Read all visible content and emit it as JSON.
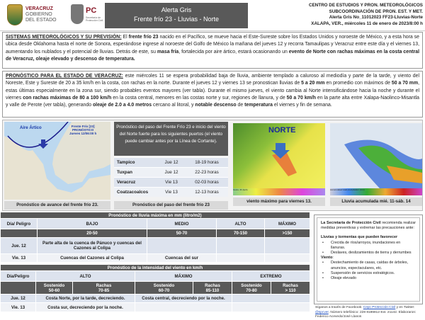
{
  "header": {
    "logo_veracruz": [
      "VERACRUZ",
      "GOBIERNO",
      "DEL ESTADO"
    ],
    "logo_pc": "PC",
    "logo_pc_sub": "Secretaría de Protección Civil",
    "title": "Alerta Gris",
    "subtitle": "Frente frío 23 - Lluvias - Norte",
    "right_lines": [
      "CENTRO DE ESTUDIOS Y PRON. METEOROLÓGICOS",
      "SUBCOORDINACIÓN DE PRON.  EST. Y MET.",
      "Alerta Gris No_11012023 FF23-Lluvias-Norte",
      "XALAPA, VER., miércoles 11 de enero  de 2023/8:00 h"
    ]
  },
  "section1": {
    "heading": "SISTEMAS METEOROLÓGICOS Y SU PREVISIÓN:",
    "t1": " El ",
    "b1": "frente frío 23",
    "t2": " nacido en el Pacífico, se mueve hacia el Este-Sureste sobre los Estados Unidos y noroeste de México, y a esta hora se ubica desde Oklahoma hasta el norte de Sonora, esperándose ingrese al noroeste del Golfo de México la mañana del jueves 12 y recorra Tamaulipas y Veracruz entre este día y el viernes 13, aumentando los nublados y el potencial de lluvias. Detrás de este, su ",
    "b2": "masa fría",
    "t3": ", fortalecida por aire ártico, estará ocasionando un ",
    "b3": "evento de Norte con rachas máximas en la costa central de Veracruz, oleaje elevado y descenso de temperatura."
  },
  "section2": {
    "heading": "PRONÓSTICO PARA EL ESTADO DE VERACRUZ:",
    "t1": " este miércoles 11 se espera probabilidad baja de lluvia, ambiente templado a caluroso al mediodía y parte de la tarde, y viento del Noreste, Este y Sureste de 20 a 35 km/h en la costa, con rachas en la norte. Durante el jueves 12 y viernes 13 se pronostican lluvias de ",
    "b1": "5 a 20 mm",
    "t2": " en promedio con máximos de ",
    "b2": "50 a 70 mm",
    "t3": ", estas últimas especialmente en la zona sur, siendo probables eventos mayores  (ver tabla). Durante el mismo jueves, el viento cambia al Norte intensificándose hacia la noche y durante el viernes ",
    "b3": "con rachas máximas de 80 a 100 km/h",
    "t4": " en la costa central, menores en las costas norte y sur, regiones de llanura, y de ",
    "b4": "50 a 70 km/h",
    "t5": " en la parte alta entre Xalapa-Naolinco-Misantla y valle de Perote (ver tabla), generando ",
    "b5": "oleaje de 2.0 a 4.0 metros",
    "t6": " cercano al litoral, y ",
    "b6": "notable descenso",
    "t7": " de ",
    "b7": "temperatura",
    "t8": " el viernes y fin de semana."
  },
  "figures": {
    "map_labels": {
      "aire": "Aire Ártico",
      "frente": "Frente Frío [23]",
      "pron": "PRONÓSTICO",
      "jueves": "Jueves 12/06:00 h"
    },
    "map_caption": "Pronóstico de avance del frente frío 23.",
    "ports_header": "Pronóstico del paso del Frente Frío 23 e inicio del viento del Norte fuerte  para los siguientes puertos (el viento puede cambiar antes por la Línea de Cortante).",
    "ports": [
      {
        "port": "Tampico",
        "day": "Jue 12",
        "hours": "18-19 horas"
      },
      {
        "port": "Tuxpan",
        "day": "Jue 12",
        "hours": "22-23 horas"
      },
      {
        "port": "Veracruz",
        "day": "Vie 13",
        "hours": "02-03 horas"
      },
      {
        "port": "Coatzacoalcos",
        "day": "Vie 13",
        "hours": "12-13 horas"
      }
    ],
    "ports_caption": "Pronóstico del paso del frente frío 23",
    "wind_label": "NORTE",
    "wind_legend": "Gusts, 3h (kph)",
    "wind_caption": "viento máximo para viernes 13.",
    "rain_legend": "Accumulated total precipitation (mm)",
    "rain_caption": "Lluvia acumulada mié. 11-sáb. 14"
  },
  "rain_table": {
    "title": "Pronóstico de lluvia máxima en mm (litro/m2)",
    "headers": [
      "Día/ Peligro",
      "BAJO",
      "MEDIO",
      "ALTO",
      "MÁXIMO"
    ],
    "ranges": [
      "",
      "20-50",
      "50-70",
      "70-150",
      ">150"
    ],
    "rows": [
      [
        "Jue. 12",
        "Parte alta de la cuenca de Pánuco y cuencas del Cazones al Colipa",
        "",
        "",
        ""
      ],
      [
        "Vie. 13",
        "Cuencas del Cazones al Colipa",
        "Cuencas del sur",
        "",
        ""
      ]
    ]
  },
  "wind_table": {
    "title": "Pronóstico de la intensidad del viento en km/h",
    "headers": [
      "Día/Peligro",
      "ALTO",
      "MÁXIMO",
      "EXTREMO"
    ],
    "sub": [
      [
        "Sostenido",
        "50-60"
      ],
      [
        "Rachas",
        "70-85"
      ],
      [
        "Sostenido",
        "60-70"
      ],
      [
        "Rachas",
        "85-110"
      ],
      [
        "Sostenido",
        "70-80"
      ],
      [
        "Rachas",
        "> 110"
      ]
    ],
    "rows": [
      [
        "Jue. 12",
        "Costa Norte, por la tarde, decreciendo.",
        "Costa central, decreciendo por la noche.",
        ""
      ],
      [
        "Vie. 13",
        "Costa sur, decreciendo por la noche.",
        "",
        ""
      ]
    ]
  },
  "recommendations": {
    "intro_bold": "La Secretaría de Protección Civil",
    "intro": " recomienda realizar medidas preventivas y extremar las precauciones ante:",
    "rain_title": "Lluvias y tormentas que pueden favorecer",
    "rain_items": [
      "Crecida de ríos/arroyos, inundaciones en llanuras.",
      "Deslaves, deslizamientos de tierra y derrumbes"
    ],
    "wind_title": "Viento",
    "wind_items": [
      "Destechamiento de casas, caídas de árboles, anuncios, espectaculares, etc.",
      "Suspensión de servicios estratégicos.",
      "Oleaje elevado"
    ]
  },
  "footer": {
    "t1": "Síganos a través de Facebook: ",
    "fb": "Cepc Protección Civil",
    "t2": " y en Twitter: ",
    "tw": "@spcver",
    "t3": ". Número telefónico:  228 8186812 Ext. 21142. Elaboraron: Federico Acevedo/José Llanos"
  }
}
